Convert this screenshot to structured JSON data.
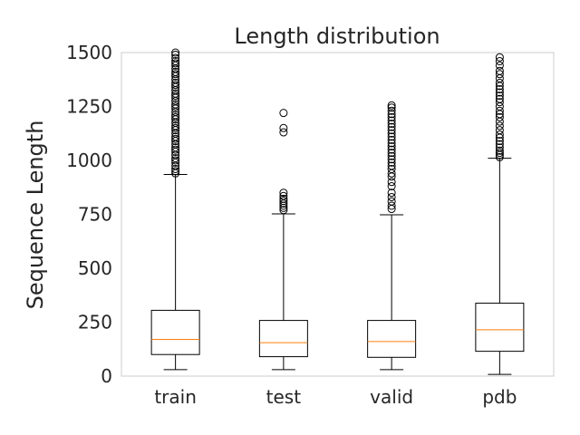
{
  "chart_data": {
    "type": "boxplot",
    "title": "Length distribution",
    "xlabel": "",
    "ylabel": "Sequence Length",
    "ylim": [
      0,
      1500
    ],
    "yticks": [
      0,
      250,
      500,
      750,
      1000,
      1250,
      1500
    ],
    "grid": false,
    "colors": {
      "box": "#000000",
      "median": "#ff7f0e",
      "frame": "#cccccc"
    },
    "categories": [
      "train",
      "test",
      "valid",
      "pdb"
    ],
    "boxes": [
      {
        "name": "train",
        "whisker_low": 30,
        "q1": 100,
        "median": 170,
        "q3": 305,
        "whisker_high": 935,
        "outliers": [
          940,
          950,
          960,
          975,
          990,
          1000,
          1010,
          1025,
          1040,
          1050,
          1060,
          1075,
          1090,
          1100,
          1110,
          1125,
          1140,
          1150,
          1160,
          1175,
          1190,
          1200,
          1210,
          1225,
          1240,
          1250,
          1260,
          1275,
          1290,
          1300,
          1310,
          1325,
          1340,
          1350,
          1360,
          1375,
          1390,
          1400,
          1410,
          1425,
          1440,
          1450,
          1460,
          1475,
          1490,
          1500
        ]
      },
      {
        "name": "test",
        "whisker_low": 30,
        "q1": 90,
        "median": 155,
        "q3": 258,
        "whisker_high": 752,
        "outliers": [
          770,
          780,
          790,
          800,
          812,
          822,
          835,
          850,
          1130,
          1150,
          1220
        ]
      },
      {
        "name": "valid",
        "whisker_low": 30,
        "q1": 87,
        "median": 160,
        "q3": 258,
        "whisker_high": 748,
        "outliers": [
          775,
          790,
          810,
          830,
          850,
          880,
          900,
          925,
          940,
          960,
          975,
          990,
          1005,
          1020,
          1035,
          1050,
          1065,
          1080,
          1095,
          1110,
          1125,
          1140,
          1155,
          1170,
          1185,
          1200,
          1215,
          1230,
          1245,
          1255
        ]
      },
      {
        "name": "pdb",
        "whisker_low": 8,
        "q1": 115,
        "median": 215,
        "q3": 338,
        "whisker_high": 1010,
        "outliers": [
          1015,
          1025,
          1035,
          1045,
          1060,
          1075,
          1090,
          1105,
          1120,
          1140,
          1160,
          1180,
          1200,
          1215,
          1230,
          1250,
          1270,
          1285,
          1300,
          1315,
          1330,
          1345,
          1360,
          1380,
          1400,
          1415,
          1440,
          1460,
          1478
        ]
      }
    ]
  }
}
